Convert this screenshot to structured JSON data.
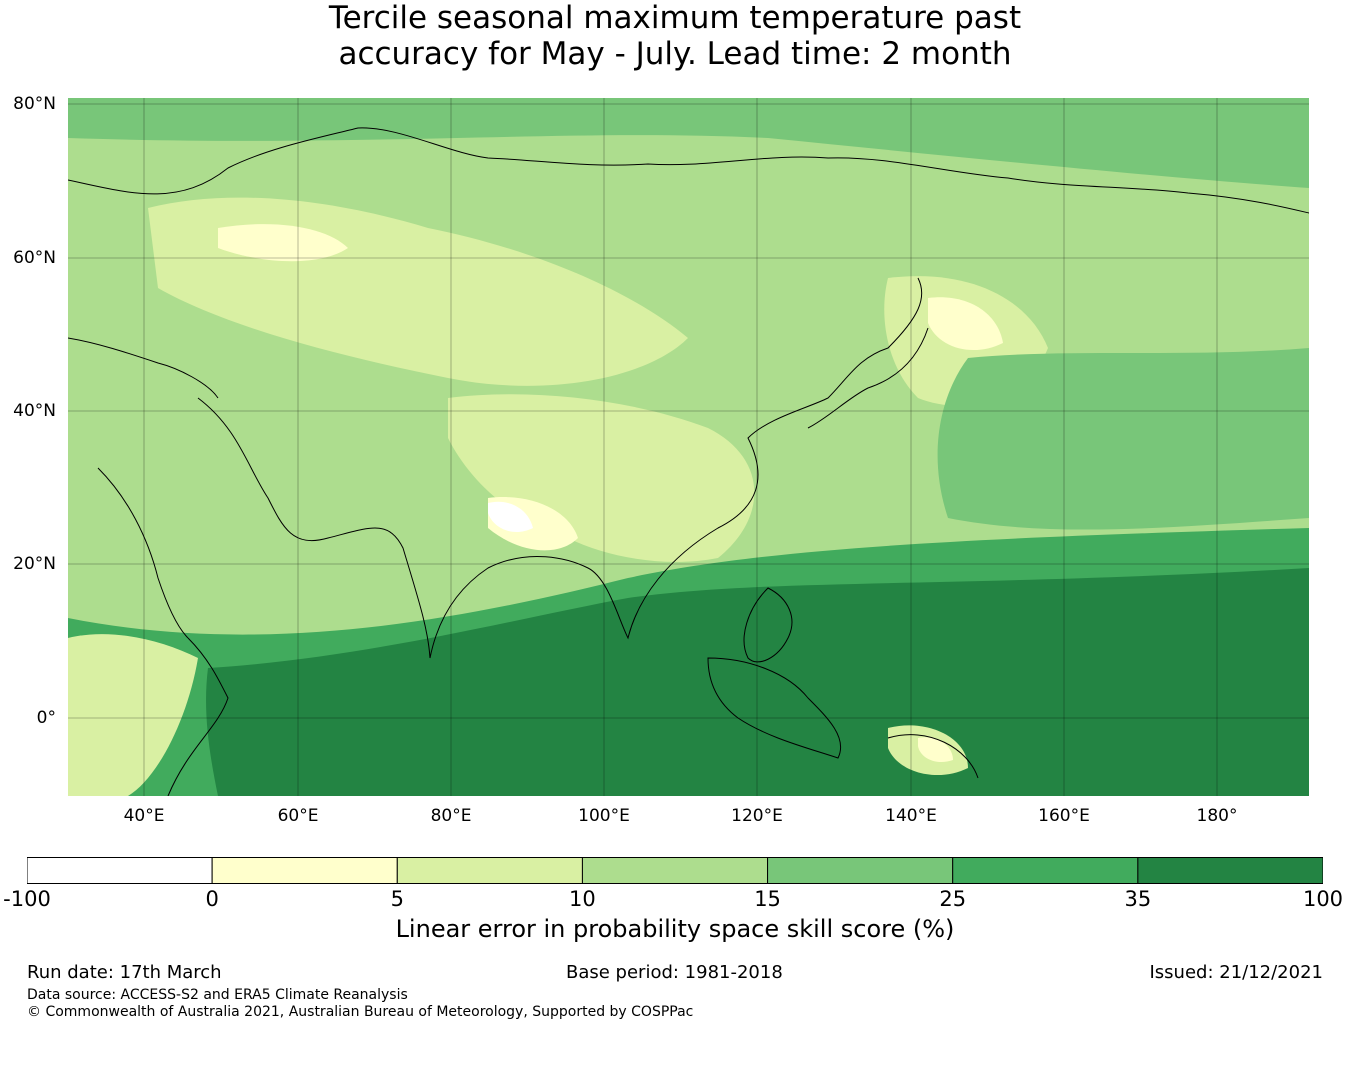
{
  "title": {
    "line1": "Tercile seasonal maximum temperature past",
    "line2": "accuracy for May - July. Lead time: 2 month"
  },
  "map": {
    "lat_ticks": [
      "80°N",
      "60°N",
      "40°N",
      "20°N",
      "0°"
    ],
    "lon_ticks": [
      "40°E",
      "60°E",
      "80°E",
      "100°E",
      "120°E",
      "140°E",
      "160°E",
      "180°"
    ],
    "extent": {
      "lon_min": 30,
      "lon_max": 192,
      "lat_min": -10,
      "lat_max": 81
    },
    "grid": true
  },
  "colorbar": {
    "boundaries": [
      "-100",
      "0",
      "5",
      "10",
      "15",
      "25",
      "35",
      "100"
    ],
    "colors": [
      "#ffffff",
      "#ffffcc",
      "#d9f0a3",
      "#addd8e",
      "#78c679",
      "#41ab5d",
      "#238443"
    ],
    "title": "Linear error in probability space skill score (%)"
  },
  "footer": {
    "run_date": "Run date: 17th March",
    "base_period": "Base period: 1981-2018",
    "issued": "Issued: 21/12/2021",
    "data_source": "Data source: ACCESS-S2 and ERA5 Climate Reanalysis",
    "copyright": "© Commonwealth of Australia 2021, Australian Bureau of Meteorology, Supported by COSPPac"
  }
}
